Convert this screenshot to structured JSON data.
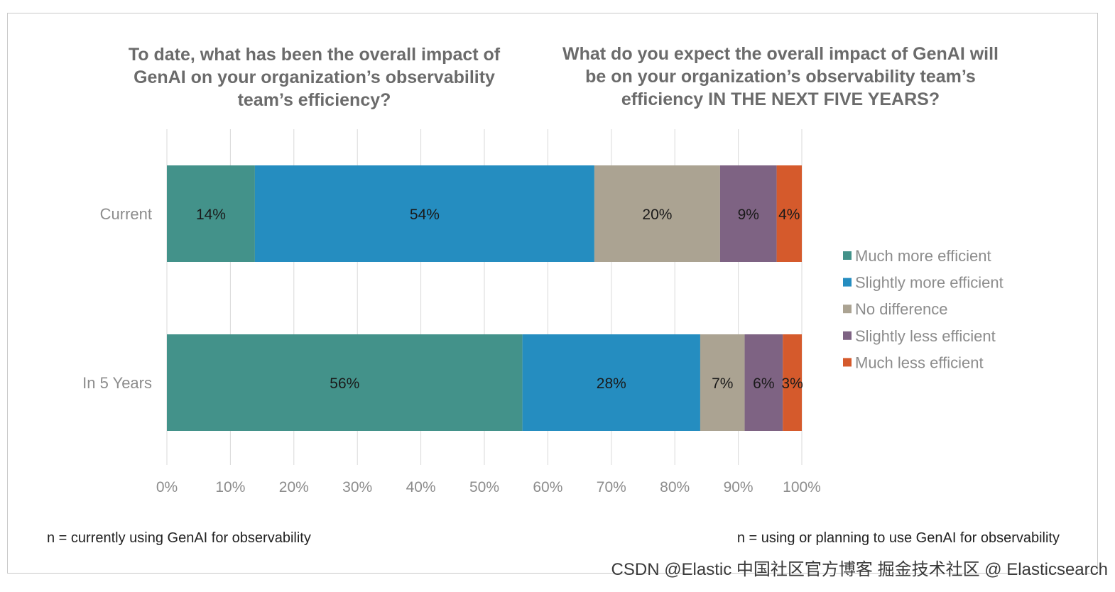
{
  "titles": {
    "left": "To date, what has been the overall impact of GenAI on your organization’s observability team’s efficiency?",
    "right": "What do you expect the overall impact of GenAI will be on your organization’s observability team’s efficiency IN THE NEXT FIVE YEARS?"
  },
  "notes": {
    "left": "n = currently using GenAI for observability",
    "right": "n = using or planning to use GenAI for observability"
  },
  "watermark": "CSDN @Elastic 中国社区官方博客  掘金技术社区 @ Elasticsearch",
  "chart_data": {
    "type": "bar",
    "orientation": "horizontal",
    "stacked": "percent",
    "categories": [
      "Current",
      "In 5 Years"
    ],
    "series": [
      {
        "name": "Much more efficient",
        "color": "#43928a",
        "values": [
          14,
          56
        ],
        "labels": [
          "14%",
          "56%"
        ]
      },
      {
        "name": "Slightly more efficient",
        "color": "#258dc0",
        "values": [
          54,
          28
        ],
        "labels": [
          "54%",
          "28%"
        ]
      },
      {
        "name": "No difference",
        "color": "#aba392",
        "values": [
          20,
          7
        ],
        "labels": [
          "20%",
          "7%"
        ]
      },
      {
        "name": "Slightly less efficient",
        "color": "#7e6383",
        "values": [
          9,
          6
        ],
        "labels": [
          "9%",
          "6%"
        ]
      },
      {
        "name": "Much less efficient",
        "color": "#d55a2c",
        "values": [
          4,
          3
        ],
        "labels": [
          "4%",
          "3%"
        ]
      }
    ],
    "xlim": [
      0,
      100
    ],
    "xticks": [
      "0%",
      "10%",
      "20%",
      "30%",
      "40%",
      "50%",
      "60%",
      "70%",
      "80%",
      "90%",
      "100%"
    ],
    "grid": true,
    "legend": "right"
  }
}
